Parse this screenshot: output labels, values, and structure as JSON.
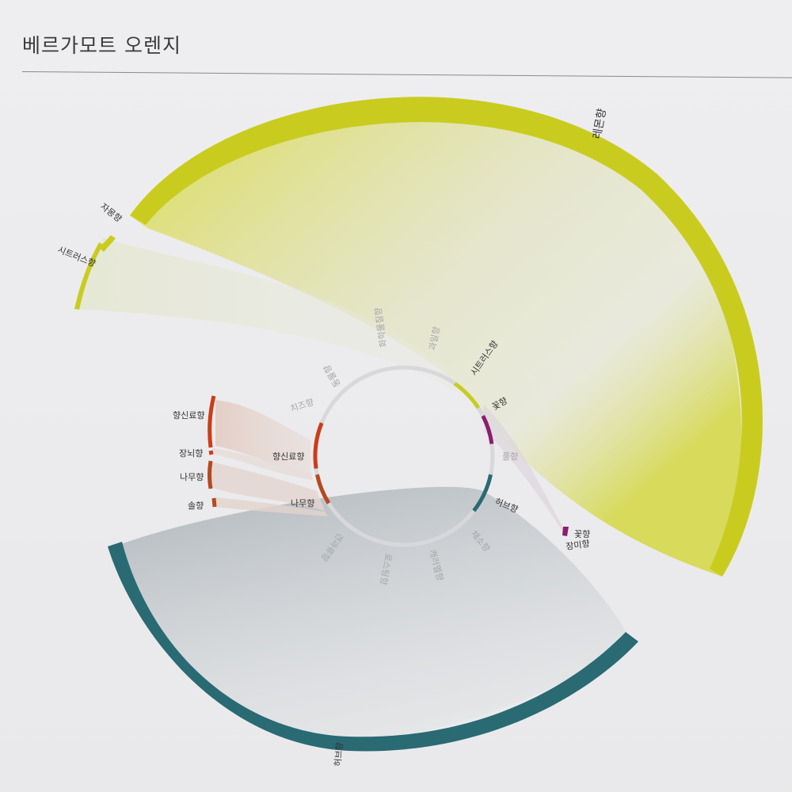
{
  "page": {
    "title": "베르가모트 오렌지"
  },
  "colors": {
    "citrus": "#c9cc1f",
    "spice": "#cc3d18",
    "wood": "#b5491f",
    "flower": "#8b1e6e",
    "herb": "#296a73",
    "ring": "#d8d8da"
  },
  "inner_ring": {
    "categories": [
      {
        "label": "화학물질향",
        "active": false
      },
      {
        "label": "과일향",
        "active": false
      },
      {
        "label": "시트러스향",
        "active": true,
        "color": "#c9cc1f"
      },
      {
        "label": "꽃향",
        "active": true,
        "color": "#8b1e6e"
      },
      {
        "label": "풀향",
        "active": false
      },
      {
        "label": "허브향",
        "active": true,
        "color": "#296a73"
      },
      {
        "label": "채소향",
        "active": false
      },
      {
        "label": "캐러멜향",
        "active": false
      },
      {
        "label": "로스팅향",
        "active": false
      },
      {
        "label": "견과류향",
        "active": false
      },
      {
        "label": "나무향",
        "active": true,
        "color": "#b5491f"
      },
      {
        "label": "향신료향",
        "active": true,
        "color": "#cc3d18"
      },
      {
        "label": "치즈향",
        "active": false
      },
      {
        "label": "동물향",
        "active": false
      }
    ]
  },
  "outer_nodes": [
    {
      "label": "레몬향",
      "color": "#c9cc1f"
    },
    {
      "label": "자몽향",
      "color": "#c9cc1f"
    },
    {
      "label": "시트러스향",
      "color": "#c9cc1f"
    },
    {
      "label": "향신료향",
      "color": "#cc3d18"
    },
    {
      "label": "장뇌향",
      "color": "#cc3d18"
    },
    {
      "label": "나무향",
      "color": "#b5491f"
    },
    {
      "label": "솔향",
      "color": "#b5491f"
    },
    {
      "label": "꽃향",
      "color": "#8b1e6e"
    },
    {
      "label": "장미향",
      "color": "#8b1e6e"
    },
    {
      "label": "허브향",
      "color": "#296a73"
    }
  ]
}
